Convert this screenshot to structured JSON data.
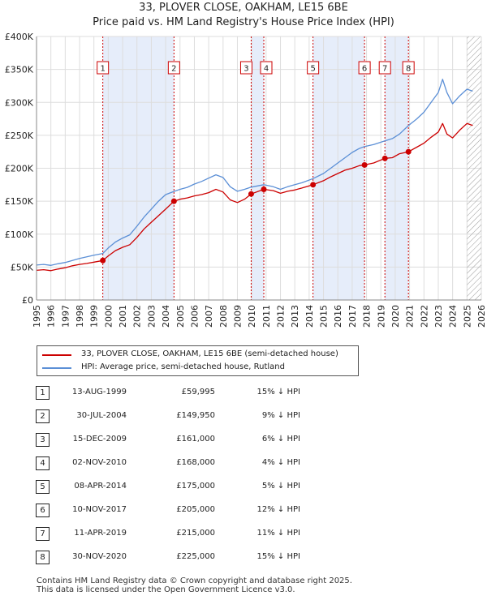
{
  "title_line1": "33, PLOVER CLOSE, OAKHAM, LE15 6BE",
  "title_line2": "Price paid vs. HM Land Registry's House Price Index (HPI)",
  "colors": {
    "property": "#cc0000",
    "hpi": "#5b8fd6",
    "shade": "#e6edfa",
    "grid": "#dddddd",
    "marker_line": "#cc0000"
  },
  "legend": {
    "property_label": "33, PLOVER CLOSE, OAKHAM, LE15 6BE (semi-detached house)",
    "hpi_label": "HPI: Average price, semi-detached house, Rutland"
  },
  "sales": [
    {
      "num": "1",
      "date": "13-AUG-1999",
      "price": "£59,995",
      "hpi": "15% ↓ HPI"
    },
    {
      "num": "2",
      "date": "30-JUL-2004",
      "price": "£149,950",
      "hpi": "9% ↓ HPI"
    },
    {
      "num": "3",
      "date": "15-DEC-2009",
      "price": "£161,000",
      "hpi": "6% ↓ HPI"
    },
    {
      "num": "4",
      "date": "02-NOV-2010",
      "price": "£168,000",
      "hpi": "4% ↓ HPI"
    },
    {
      "num": "5",
      "date": "08-APR-2014",
      "price": "£175,000",
      "hpi": "5% ↓ HPI"
    },
    {
      "num": "6",
      "date": "10-NOV-2017",
      "price": "£205,000",
      "hpi": "12% ↓ HPI"
    },
    {
      "num": "7",
      "date": "11-APR-2019",
      "price": "£215,000",
      "hpi": "11% ↓ HPI"
    },
    {
      "num": "8",
      "date": "30-NOV-2020",
      "price": "£225,000",
      "hpi": "15% ↓ HPI"
    }
  ],
  "footer_line1": "Contains HM Land Registry data © Crown copyright and database right 2025.",
  "footer_line2": "This data is licensed under the Open Government Licence v3.0.",
  "chart_data": {
    "type": "line",
    "title": "33, PLOVER CLOSE, OAKHAM, LE15 6BE",
    "subtitle": "Price paid vs. HM Land Registry's House Price Index (HPI)",
    "xlabel": "",
    "ylabel": "",
    "xlim": [
      1995,
      2026
    ],
    "ylim": [
      0,
      400000
    ],
    "x_ticks": [
      1995,
      1996,
      1997,
      1998,
      1999,
      2000,
      2001,
      2002,
      2003,
      2004,
      2005,
      2006,
      2007,
      2008,
      2009,
      2010,
      2011,
      2012,
      2013,
      2014,
      2015,
      2016,
      2017,
      2018,
      2019,
      2020,
      2021,
      2022,
      2023,
      2024,
      2025,
      2026
    ],
    "y_ticks": [
      0,
      50000,
      100000,
      150000,
      200000,
      250000,
      300000,
      350000,
      400000
    ],
    "y_tick_labels": [
      "£0",
      "£50K",
      "£100K",
      "£150K",
      "£200K",
      "£250K",
      "£300K",
      "£350K",
      "£400K"
    ],
    "grid": true,
    "legend_position": "below",
    "shaded_periods": [
      [
        1999.62,
        2004.58
      ],
      [
        2009.96,
        2010.84
      ],
      [
        2014.27,
        2017.86
      ],
      [
        2019.28,
        2020.92
      ]
    ],
    "future_hatch_from": 2025.0,
    "series": [
      {
        "name": "33, PLOVER CLOSE, OAKHAM, LE15 6BE (semi-detached house)",
        "x": [
          1995.0,
          1995.5,
          1996.0,
          1996.5,
          1997.0,
          1997.5,
          1998.0,
          1998.5,
          1999.0,
          1999.62,
          2000.0,
          2000.5,
          2001.0,
          2001.5,
          2002.0,
          2002.5,
          2003.0,
          2003.5,
          2004.0,
          2004.58,
          2005.0,
          2005.5,
          2006.0,
          2006.5,
          2007.0,
          2007.5,
          2008.0,
          2008.5,
          2009.0,
          2009.5,
          2009.96,
          2010.84,
          2011.5,
          2012.0,
          2012.5,
          2013.0,
          2013.5,
          2014.27,
          2015.0,
          2015.5,
          2016.0,
          2016.5,
          2017.0,
          2017.5,
          2017.86,
          2018.5,
          2019.28,
          2019.8,
          2020.3,
          2020.92,
          2021.5,
          2022.0,
          2022.5,
          2023.0,
          2023.3,
          2023.6,
          2024.0,
          2024.5,
          2025.0,
          2025.4
        ],
        "values": [
          45000,
          46000,
          44500,
          47000,
          49000,
          52000,
          54000,
          55500,
          57500,
          59995,
          67000,
          75000,
          80000,
          84000,
          95000,
          108000,
          118000,
          128000,
          138000,
          149950,
          153000,
          155000,
          158000,
          160000,
          163000,
          168000,
          164000,
          152000,
          148000,
          153000,
          161000,
          168000,
          166000,
          162000,
          165000,
          167000,
          170000,
          175000,
          181000,
          187000,
          192000,
          197000,
          200000,
          204000,
          205000,
          208000,
          215000,
          216000,
          222000,
          225000,
          232000,
          238000,
          247000,
          255000,
          268000,
          252000,
          246000,
          258000,
          268000,
          265000
        ]
      },
      {
        "name": "HPI: Average price, semi-detached house, Rutland",
        "x": [
          1995.0,
          1995.5,
          1996.0,
          1996.5,
          1997.0,
          1997.5,
          1998.0,
          1998.5,
          1999.0,
          1999.62,
          2000.0,
          2000.5,
          2001.0,
          2001.5,
          2002.0,
          2002.5,
          2003.0,
          2003.5,
          2004.0,
          2004.58,
          2005.0,
          2005.5,
          2006.0,
          2006.5,
          2007.0,
          2007.5,
          2008.0,
          2008.5,
          2009.0,
          2009.5,
          2009.96,
          2010.84,
          2011.5,
          2012.0,
          2012.5,
          2013.0,
          2013.5,
          2014.27,
          2015.0,
          2015.5,
          2016.0,
          2016.5,
          2017.0,
          2017.5,
          2017.86,
          2018.5,
          2019.28,
          2019.8,
          2020.3,
          2020.92,
          2021.5,
          2022.0,
          2022.5,
          2023.0,
          2023.3,
          2023.6,
          2024.0,
          2024.5,
          2025.0,
          2025.4
        ],
        "values": [
          53000,
          54000,
          52500,
          55000,
          57000,
          60000,
          63000,
          65500,
          68000,
          70600,
          79000,
          88000,
          94000,
          99000,
          112000,
          126000,
          138000,
          150000,
          160000,
          164800,
          168000,
          171000,
          176000,
          180000,
          185000,
          190000,
          186000,
          172000,
          165000,
          168000,
          171300,
          175000,
          172000,
          168000,
          172000,
          175000,
          178000,
          184200,
          192000,
          200000,
          208000,
          216000,
          224000,
          230000,
          233000,
          236000,
          241600,
          245000,
          252000,
          264700,
          275000,
          285000,
          300000,
          315000,
          335000,
          315000,
          298000,
          310000,
          320000,
          317000
        ]
      }
    ],
    "sale_markers": [
      {
        "label": "1",
        "x": 1999.62,
        "value": 59995
      },
      {
        "label": "2",
        "x": 2004.58,
        "value": 149950
      },
      {
        "label": "3",
        "x": 2009.96,
        "value": 161000
      },
      {
        "label": "4",
        "x": 2010.84,
        "value": 168000
      },
      {
        "label": "5",
        "x": 2014.27,
        "value": 175000
      },
      {
        "label": "6",
        "x": 2017.86,
        "value": 205000
      },
      {
        "label": "7",
        "x": 2019.28,
        "value": 215000
      },
      {
        "label": "8",
        "x": 2020.92,
        "value": 225000
      }
    ]
  }
}
